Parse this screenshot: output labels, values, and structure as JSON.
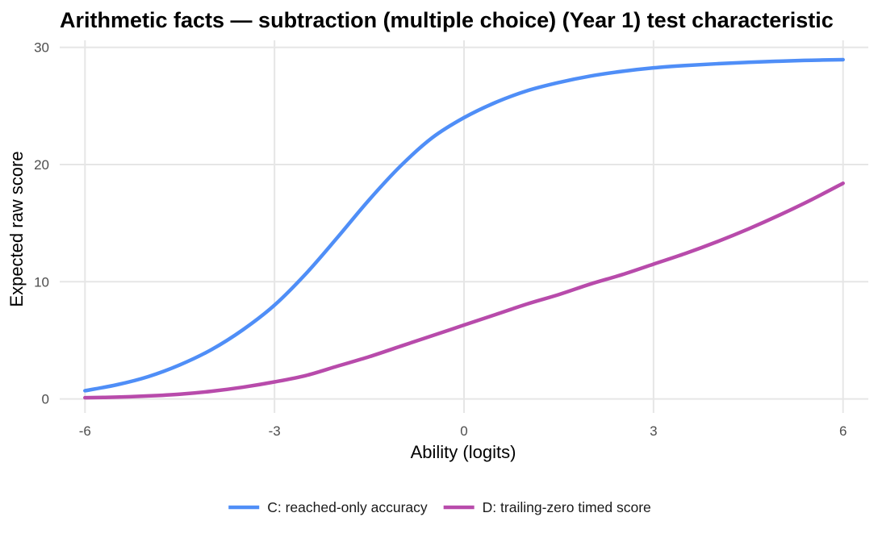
{
  "chart_data": {
    "type": "line",
    "title": "Arithmetic facts — subtraction (multiple choice) (Year 1) test characteristic",
    "xlabel": "Ability (logits)",
    "ylabel": "Expected raw score",
    "xlim": [
      -6.4,
      6.4
    ],
    "ylim": [
      -1.2,
      30.6
    ],
    "x_ticks": [
      -6,
      -3,
      0,
      3,
      6
    ],
    "x_tick_labels": [
      "-6",
      "-3",
      "0",
      "3",
      "6"
    ],
    "y_ticks": [
      0,
      10,
      20,
      30
    ],
    "y_tick_labels": [
      "0",
      "10",
      "20",
      "30"
    ],
    "grid": true,
    "legend_position": "bottom",
    "series": [
      {
        "name": "C: reached-only accuracy",
        "color": "#4f8ef7",
        "x": [
          -6,
          -5.5,
          -5,
          -4.5,
          -4,
          -3.5,
          -3,
          -2.5,
          -2,
          -1.5,
          -1,
          -0.5,
          0,
          0.5,
          1,
          1.5,
          2,
          2.5,
          3,
          3.5,
          4,
          4.5,
          5,
          5.5,
          6
        ],
        "y": [
          0.7,
          1.2,
          1.9,
          2.9,
          4.2,
          5.9,
          8.0,
          10.7,
          13.8,
          17.0,
          19.9,
          22.3,
          24.0,
          25.3,
          26.3,
          27.0,
          27.55,
          27.95,
          28.25,
          28.45,
          28.6,
          28.72,
          28.82,
          28.9,
          28.95
        ]
      },
      {
        "name": "D: trailing-zero timed score",
        "color": "#b84bab",
        "x": [
          -6,
          -5.5,
          -5,
          -4.5,
          -4,
          -3.5,
          -3,
          -2.5,
          -2,
          -1.5,
          -1,
          -0.5,
          0,
          0.5,
          1,
          1.5,
          2,
          2.5,
          3,
          3.5,
          4,
          4.5,
          5,
          5.5,
          6
        ],
        "y": [
          0.1,
          0.15,
          0.25,
          0.4,
          0.65,
          1.0,
          1.45,
          2.0,
          2.8,
          3.6,
          4.5,
          5.4,
          6.3,
          7.2,
          8.1,
          8.9,
          9.8,
          10.6,
          11.5,
          12.4,
          13.4,
          14.5,
          15.7,
          17.0,
          18.4
        ]
      }
    ]
  }
}
